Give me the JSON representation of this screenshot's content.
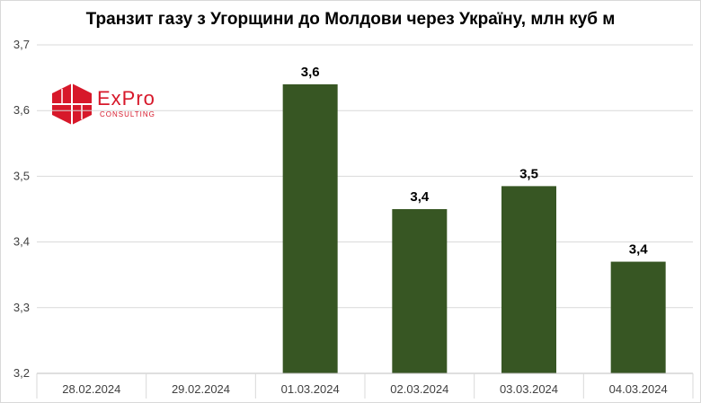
{
  "chart_data": {
    "type": "bar",
    "title": "Транзит газу з Угорщини до Молдови через Україну, млн куб м",
    "categories": [
      "28.02.2024",
      "29.02.2024",
      "01.03.2024",
      "02.03.2024",
      "03.03.2024",
      "04.03.2024"
    ],
    "values": [
      null,
      null,
      3.64,
      3.45,
      3.485,
      3.37
    ],
    "data_labels": [
      "",
      "",
      "3,6",
      "3,4",
      "3,5",
      "3,4"
    ],
    "ylim": [
      3.2,
      3.7
    ],
    "yticks": [
      "3,2",
      "3,3",
      "3,4",
      "3,5",
      "3,6",
      "3,7"
    ],
    "grid": true,
    "bar_color": "#375623",
    "grid_color": "#d9d9d9"
  },
  "logo": {
    "name": "ExPro",
    "subtitle": "CONSULTING",
    "color": "#d7182a"
  }
}
